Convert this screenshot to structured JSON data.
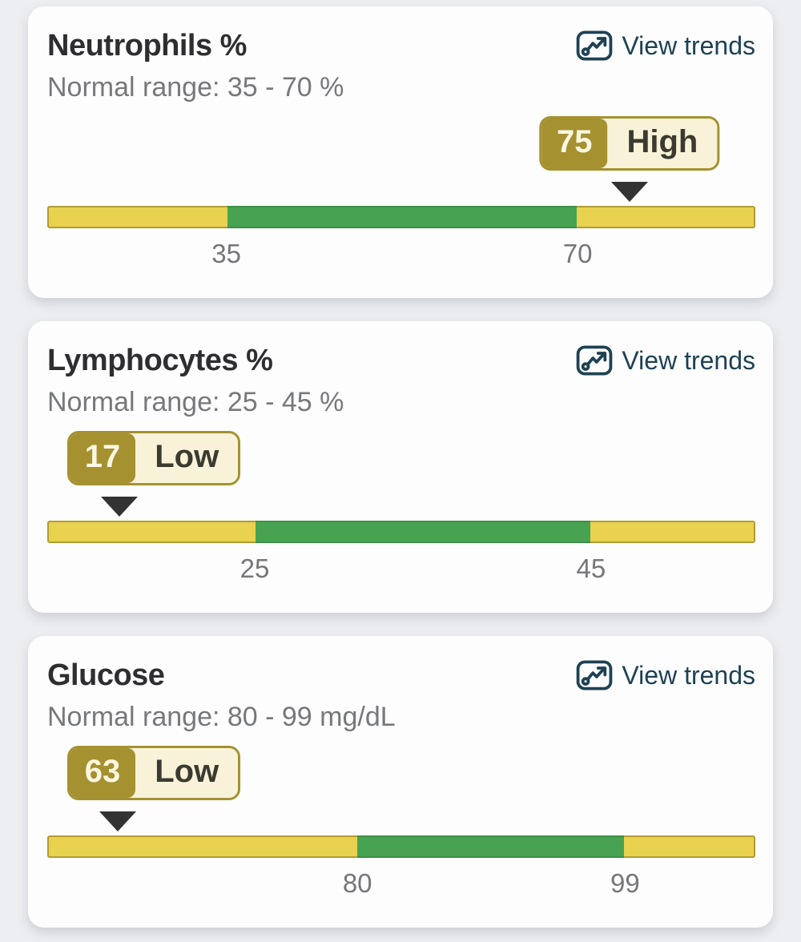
{
  "page": {
    "background": "#edeef1"
  },
  "colors": {
    "card_bg": "#fdfdfe",
    "title_text": "#2e2e30",
    "subtitle_text": "#77787a",
    "tick_text": "#76767a",
    "link_text": "#1d4253",
    "bar_yellow": "#e9d24f",
    "bar_yellow_border": "#b09c33",
    "bar_green": "#47a351",
    "badge_olive": "#a59130",
    "badge_cream": "#f8f3d8",
    "pointer": "#333333"
  },
  "chart_data": [
    {
      "type": "range-indicator",
      "title": "Neutrophils %",
      "normal_range_low": 35,
      "normal_range_high": 70,
      "unit": "%",
      "value": 75,
      "status": "High"
    },
    {
      "type": "range-indicator",
      "title": "Lymphocytes %",
      "normal_range_low": 25,
      "normal_range_high": 45,
      "unit": "%",
      "value": 17,
      "status": "Low"
    },
    {
      "type": "range-indicator",
      "title": "Glucose",
      "normal_range_low": 80,
      "normal_range_high": 99,
      "unit": "mg/dL",
      "value": 63,
      "status": "Low"
    }
  ],
  "cards": [
    {
      "title": "Neutrophils %",
      "subtitle": "Normal range: 35 - 70 %",
      "view_trends": "View trends",
      "value": "75",
      "status": "High",
      "tick_low": "35",
      "tick_high": "70",
      "geometry": {
        "green_start_pct": 25.3,
        "green_end_pct": 74.9,
        "marker_pct": 82.2,
        "badge_anchor": "center",
        "badge_left_pct": null
      }
    },
    {
      "title": "Lymphocytes %",
      "subtitle": "Normal range: 25 - 45 %",
      "view_trends": "View trends",
      "value": "17",
      "status": "Low",
      "tick_low": "25",
      "tick_high": "45",
      "geometry": {
        "green_start_pct": 29.3,
        "green_end_pct": 76.8,
        "marker_pct": 10.2,
        "badge_anchor": "left",
        "badge_left_pct": 2.8
      }
    },
    {
      "title": "Glucose",
      "subtitle": "Normal range: 80 - 99 mg/dL",
      "view_trends": "View trends",
      "value": "63",
      "status": "Low",
      "tick_low": "80",
      "tick_high": "99",
      "geometry": {
        "green_start_pct": 43.8,
        "green_end_pct": 81.6,
        "marker_pct": 9.9,
        "badge_anchor": "left",
        "badge_left_pct": 2.8
      }
    }
  ]
}
